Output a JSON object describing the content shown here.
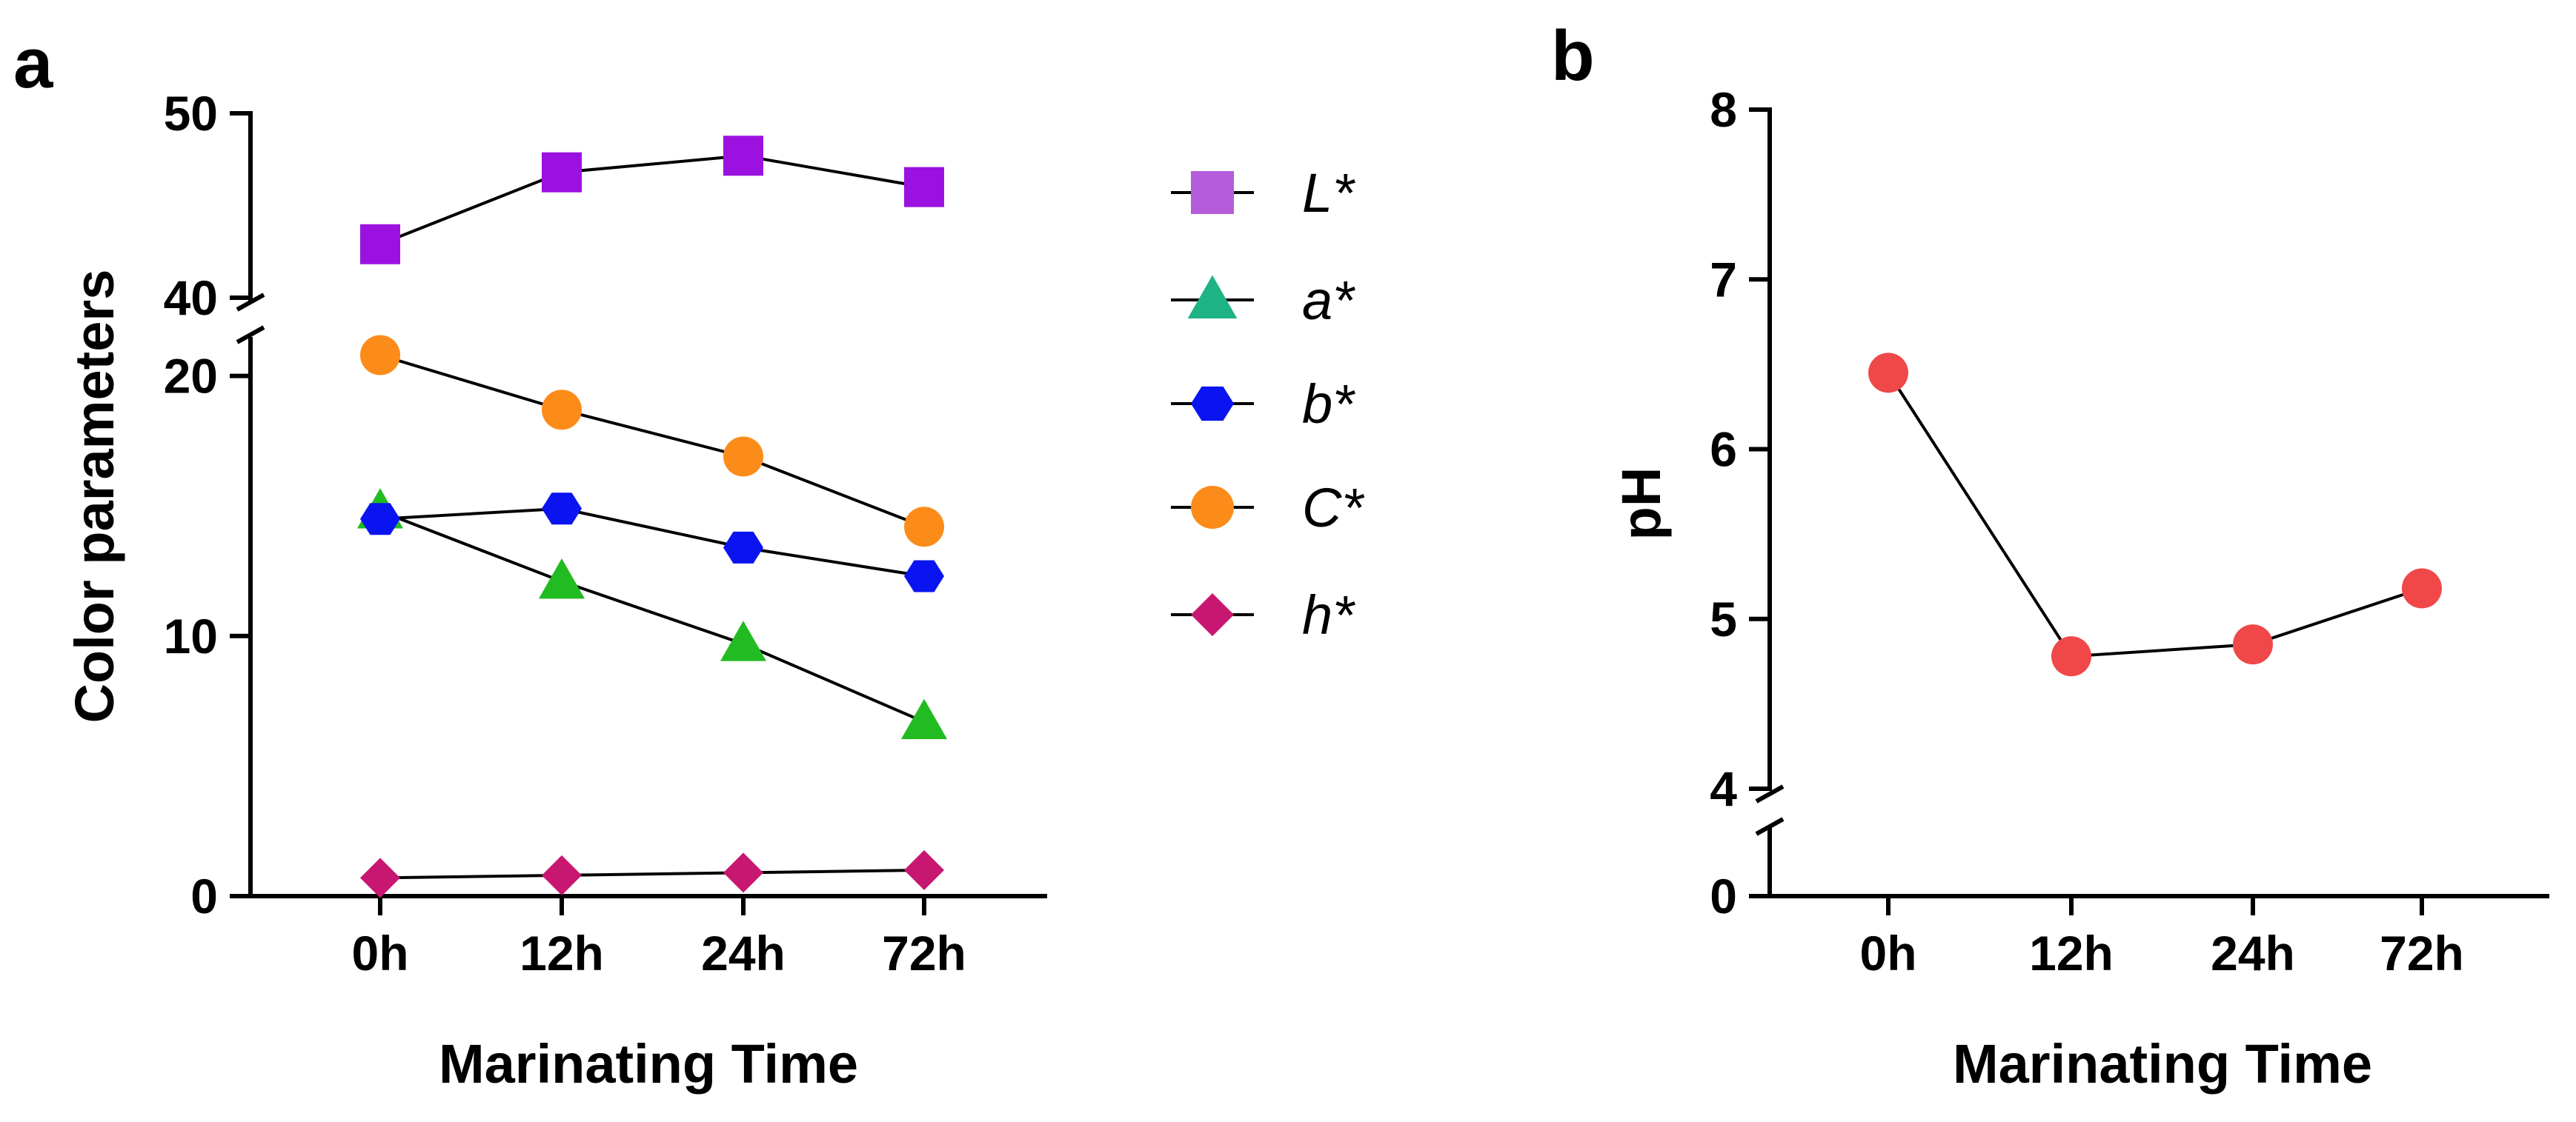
{
  "chart_data": [
    {
      "panel": "a",
      "type": "line",
      "xlabel": "Marinating Time",
      "ylabel": "Color parameters",
      "categories": [
        "0h",
        "12h",
        "24h",
        "72h"
      ],
      "axis_break": [
        25,
        40
      ],
      "lower_segment": {
        "ylim": [
          0,
          25
        ],
        "ticks": [
          0,
          10,
          20
        ]
      },
      "upper_segment": {
        "ylim": [
          40,
          50
        ],
        "ticks": [
          40,
          50
        ]
      },
      "grid": false,
      "legend_position": "right",
      "series": [
        {
          "name": "L*",
          "marker": "square",
          "color": "#9B12E0",
          "legend_color": "#B55CDA",
          "values": [
            42.9,
            46.8,
            47.7,
            46.0
          ]
        },
        {
          "name": "a*",
          "marker": "triangle",
          "color": "#22BB22",
          "legend_color": "#1DB385",
          "values": [
            14.8,
            12.1,
            9.7,
            6.7
          ]
        },
        {
          "name": "b*",
          "marker": "hexagon",
          "color": "#0A14F0",
          "legend_color": "#0A14F0",
          "values": [
            14.5,
            14.9,
            13.4,
            12.3
          ]
        },
        {
          "name": "C*",
          "marker": "circle",
          "color": "#FB8C1A",
          "legend_color": "#FB8C1A",
          "values": [
            20.8,
            18.7,
            16.9,
            14.2
          ]
        },
        {
          "name": "h*",
          "marker": "diamond",
          "color": "#C81770",
          "legend_color": "#C81770",
          "values": [
            0.7,
            0.8,
            0.9,
            1.0
          ]
        }
      ]
    },
    {
      "panel": "b",
      "type": "line",
      "xlabel": "Marinating Time",
      "ylabel": "pH",
      "categories": [
        "0h",
        "12h",
        "24h",
        "72h"
      ],
      "axis_break": [
        0,
        4
      ],
      "lower_segment": {
        "ylim": [
          0,
          1
        ],
        "ticks": [
          0
        ]
      },
      "upper_segment": {
        "ylim": [
          4,
          8
        ],
        "ticks": [
          4,
          5,
          6,
          7,
          8
        ]
      },
      "grid": false,
      "series": [
        {
          "marker": "circle",
          "color": "#F04848",
          "values": [
            6.45,
            4.78,
            4.85,
            5.18
          ]
        }
      ]
    }
  ]
}
